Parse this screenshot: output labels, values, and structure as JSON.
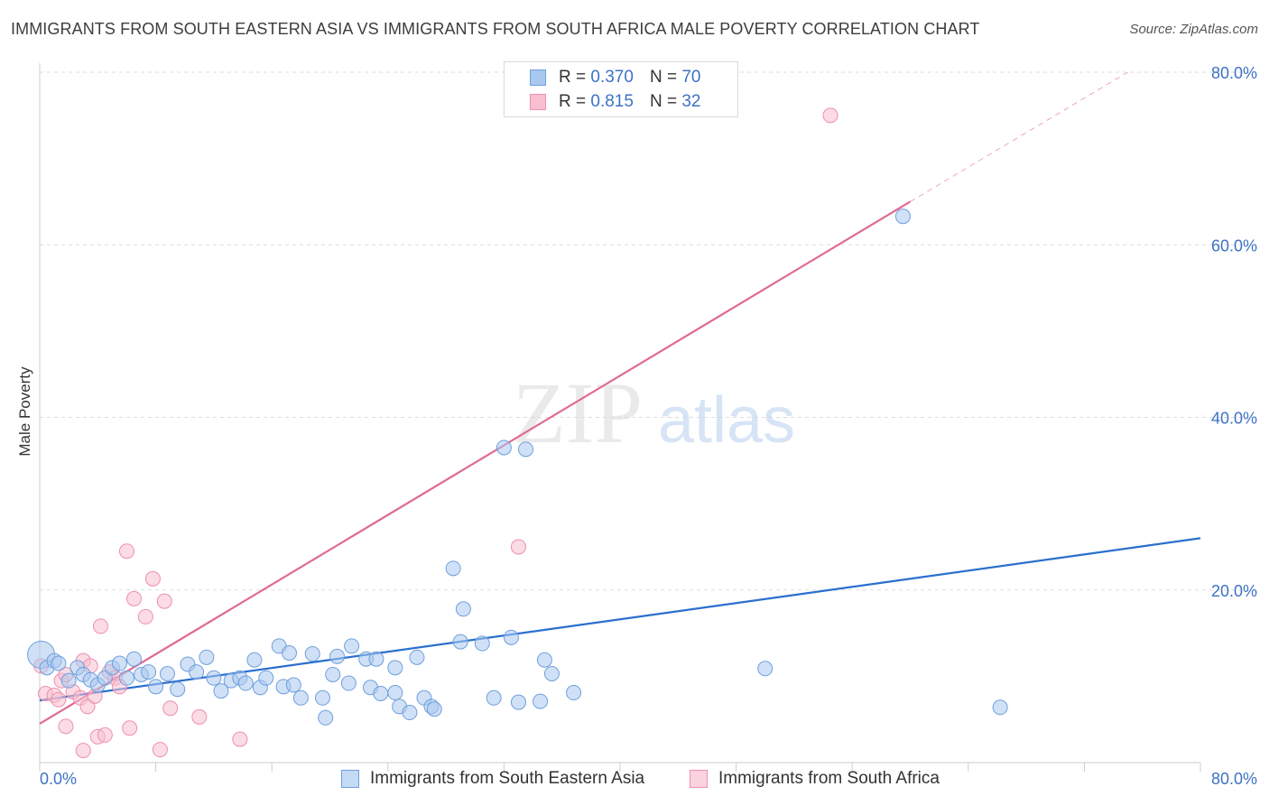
{
  "header": {
    "title": "IMMIGRANTS FROM SOUTH EASTERN ASIA VS IMMIGRANTS FROM SOUTH AFRICA MALE POVERTY CORRELATION CHART",
    "source": "Source: ZipAtlas.com"
  },
  "watermark": {
    "zip": "ZIP",
    "atlas": "atlas"
  },
  "legend_top": {
    "rows": [
      {
        "r_label": "R =",
        "r_value": "0.370",
        "n_label": "N =",
        "n_value": "70"
      },
      {
        "r_label": "R =",
        "r_value": "0.815",
        "n_label": "N =",
        "n_value": "32"
      }
    ]
  },
  "legend_bottom": {
    "items": [
      {
        "label": "Immigrants from South Eastern Asia"
      },
      {
        "label": "Immigrants from South Africa"
      }
    ]
  },
  "colors": {
    "blue_fill": "#a9c8f0",
    "blue_stroke": "#6f9fdc",
    "blue_line": "#2a6fcf",
    "pink_fill": "#f7bfd0",
    "pink_stroke": "#ee8fae",
    "pink_line": "#e06a93",
    "axis_label": "#3d72c4",
    "grid": "#dddddd"
  },
  "chart_data": {
    "type": "scatter",
    "ylabel": "Male Poverty",
    "xlim": [
      0,
      80
    ],
    "ylim": [
      0,
      80
    ],
    "x_tick_labels": [
      "0.0%",
      "80.0%"
    ],
    "y_ticks": [
      20,
      40,
      60,
      80
    ],
    "y_tick_labels": [
      "20.0%",
      "40.0%",
      "60.0%",
      "80.0%"
    ],
    "grid": true,
    "series": [
      {
        "name": "Immigrants from South Eastern Asia",
        "r": 0.37,
        "n": 70,
        "trend": {
          "x": [
            0,
            80
          ],
          "y": [
            7.2,
            26.0
          ]
        },
        "points": [
          [
            0.1,
            12.5
          ],
          [
            0.5,
            11.0
          ],
          [
            1.0,
            11.8
          ],
          [
            1.3,
            11.5
          ],
          [
            2.0,
            9.5
          ],
          [
            2.6,
            11.0
          ],
          [
            3.0,
            10.2
          ],
          [
            3.5,
            9.6
          ],
          [
            4.0,
            9.0
          ],
          [
            4.5,
            9.8
          ],
          [
            5.0,
            11.0
          ],
          [
            5.5,
            11.5
          ],
          [
            6.0,
            9.8
          ],
          [
            6.5,
            12.0
          ],
          [
            7.0,
            10.2
          ],
          [
            7.5,
            10.5
          ],
          [
            8.0,
            8.8
          ],
          [
            8.8,
            10.3
          ],
          [
            9.5,
            8.5
          ],
          [
            10.2,
            11.4
          ],
          [
            10.8,
            10.5
          ],
          [
            11.5,
            12.2
          ],
          [
            12.0,
            9.8
          ],
          [
            12.5,
            8.3
          ],
          [
            13.2,
            9.5
          ],
          [
            13.8,
            9.8
          ],
          [
            14.2,
            9.2
          ],
          [
            14.8,
            11.9
          ],
          [
            15.2,
            8.7
          ],
          [
            15.6,
            9.8
          ],
          [
            16.5,
            13.5
          ],
          [
            16.8,
            8.8
          ],
          [
            17.2,
            12.7
          ],
          [
            17.5,
            9.0
          ],
          [
            18.0,
            7.5
          ],
          [
            18.8,
            12.6
          ],
          [
            19.5,
            7.5
          ],
          [
            19.7,
            5.2
          ],
          [
            20.2,
            10.2
          ],
          [
            20.5,
            12.3
          ],
          [
            21.3,
            9.2
          ],
          [
            21.5,
            13.5
          ],
          [
            22.5,
            12.0
          ],
          [
            22.8,
            8.7
          ],
          [
            23.2,
            12.0
          ],
          [
            23.5,
            8.0
          ],
          [
            24.5,
            11.0
          ],
          [
            24.5,
            8.1
          ],
          [
            24.8,
            6.5
          ],
          [
            25.5,
            5.8
          ],
          [
            26.0,
            12.2
          ],
          [
            26.5,
            7.5
          ],
          [
            27.0,
            6.5
          ],
          [
            27.2,
            6.2
          ],
          [
            28.5,
            22.5
          ],
          [
            29.0,
            14.0
          ],
          [
            29.2,
            17.8
          ],
          [
            30.5,
            13.8
          ],
          [
            31.3,
            7.5
          ],
          [
            32.0,
            36.5
          ],
          [
            32.5,
            14.5
          ],
          [
            33.5,
            36.3
          ],
          [
            34.5,
            7.1
          ],
          [
            34.8,
            11.9
          ],
          [
            35.3,
            10.3
          ],
          [
            36.8,
            8.1
          ],
          [
            50.0,
            10.9
          ],
          [
            59.5,
            63.3
          ],
          [
            66.2,
            6.4
          ],
          [
            33.0,
            7.0
          ]
        ]
      },
      {
        "name": "Immigrants from South Africa",
        "r": 0.815,
        "n": 32,
        "trend": {
          "x": [
            0,
            60
          ],
          "y": [
            4.5,
            65.0
          ]
        },
        "trend_extension": {
          "x": [
            60,
            75
          ],
          "y": [
            65.0,
            80.0
          ]
        },
        "points": [
          [
            0.1,
            11.2
          ],
          [
            0.4,
            8.0
          ],
          [
            1.0,
            7.8
          ],
          [
            1.3,
            7.3
          ],
          [
            1.5,
            9.5
          ],
          [
            1.8,
            4.2
          ],
          [
            2.3,
            8.2
          ],
          [
            2.8,
            7.5
          ],
          [
            3.0,
            11.8
          ],
          [
            3.3,
            6.5
          ],
          [
            3.5,
            11.2
          ],
          [
            3.8,
            7.7
          ],
          [
            4.0,
            3.0
          ],
          [
            4.2,
            15.8
          ],
          [
            4.5,
            3.2
          ],
          [
            4.8,
            10.5
          ],
          [
            5.2,
            9.8
          ],
          [
            5.5,
            8.8
          ],
          [
            6.0,
            24.5
          ],
          [
            6.2,
            4.0
          ],
          [
            6.5,
            19.0
          ],
          [
            7.3,
            16.9
          ],
          [
            7.8,
            21.3
          ],
          [
            8.3,
            1.5
          ],
          [
            8.6,
            18.7
          ],
          [
            9.0,
            6.3
          ],
          [
            11.0,
            5.3
          ],
          [
            13.8,
            2.7
          ],
          [
            3.0,
            1.4
          ],
          [
            33.0,
            25.0
          ],
          [
            54.5,
            75.0
          ],
          [
            1.8,
            10.2
          ]
        ]
      }
    ]
  }
}
